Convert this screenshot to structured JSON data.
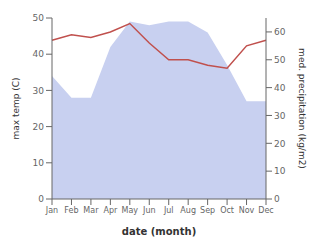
{
  "chart_data": {
    "type": "combo",
    "categories": [
      "Jan",
      "Feb",
      "Mar",
      "Apr",
      "May",
      "Jun",
      "Jul",
      "Aug",
      "Sep",
      "Oct",
      "Nov",
      "Dec"
    ],
    "series": [
      {
        "type": "area",
        "color": "#c8d0f0",
        "values": [
          34,
          28,
          28,
          42,
          49,
          48,
          49,
          49,
          46,
          37,
          27,
          27
        ]
      },
      {
        "type": "line",
        "color": "#c0504d",
        "axis": "y2",
        "values": [
          57,
          59,
          58,
          60,
          63,
          56,
          50,
          50,
          48,
          47,
          55,
          57
        ]
      }
    ],
    "xlabel": "date (month)",
    "ylabel": "max temp (C)",
    "y2label": "med. precipitation (kg/m2)",
    "ylim": [
      0,
      50
    ],
    "yticks": [
      0,
      10,
      20,
      30,
      40,
      50
    ],
    "y2lim": [
      0,
      65
    ],
    "y2ticks": [
      0,
      10,
      20,
      30,
      40,
      50,
      60
    ]
  }
}
